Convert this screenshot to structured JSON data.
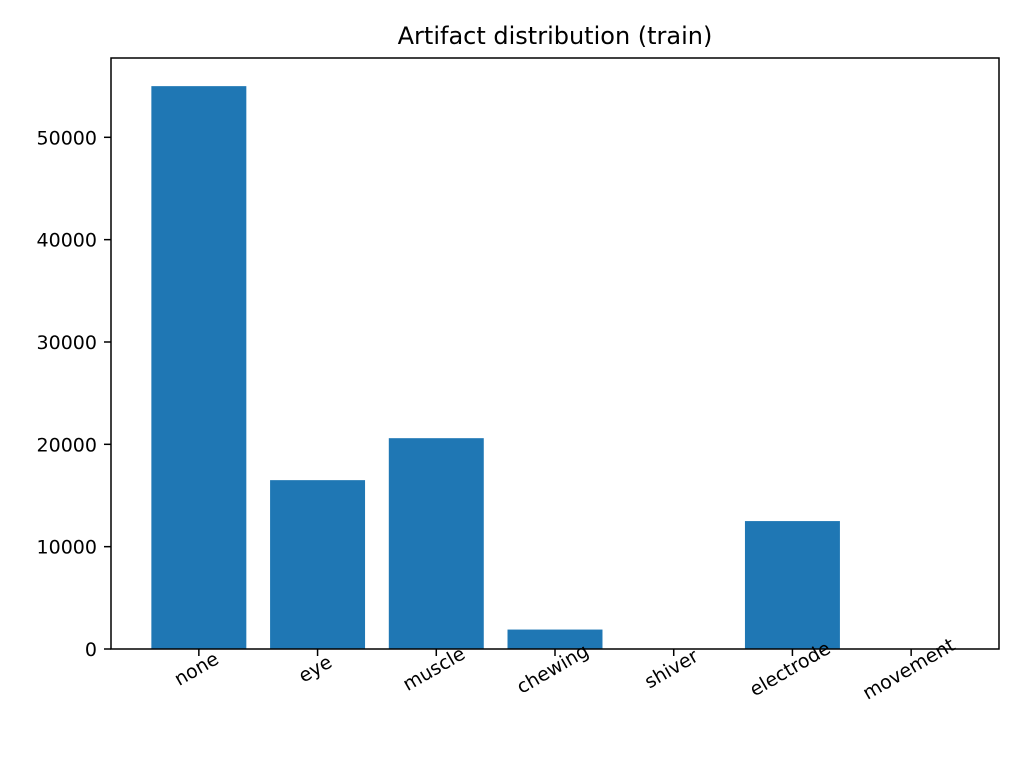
{
  "chart_data": {
    "type": "bar",
    "title": "Artifact distribution (train)",
    "xlabel": "",
    "ylabel": "",
    "categories": [
      "none",
      "eye",
      "muscle",
      "chewing",
      "shiver",
      "electrode",
      "movement"
    ],
    "values": [
      55000,
      16500,
      20600,
      1900,
      0,
      12500,
      0
    ],
    "yticks": [
      0,
      10000,
      20000,
      30000,
      40000,
      50000
    ],
    "ylim": [
      0,
      57750
    ],
    "grid": false,
    "bar_color": "#1f77b4"
  }
}
